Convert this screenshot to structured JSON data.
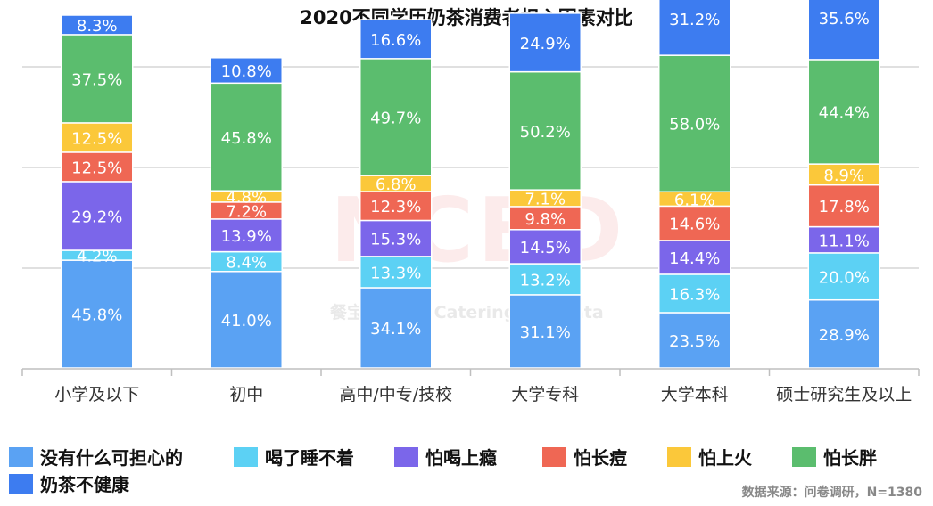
{
  "chart_data": {
    "type": "bar",
    "stacked": true,
    "title": "2020不同学历奶茶消费者担心因素对比",
    "categories": [
      "小学及以下",
      "初中",
      "高中/中专/技校",
      "大学专科",
      "大学本科",
      "硕士研究生及以上"
    ],
    "series": [
      {
        "name": "没有什么可担心的",
        "color": "#5aa2f3",
        "values": [
          45.8,
          41.0,
          34.1,
          31.1,
          23.5,
          28.9
        ]
      },
      {
        "name": "喝了睡不着",
        "color": "#5cd1f4",
        "values": [
          4.2,
          8.4,
          13.3,
          13.2,
          16.3,
          20.0
        ]
      },
      {
        "name": "怕喝上瘾",
        "color": "#7b66ea",
        "values": [
          29.2,
          13.9,
          15.3,
          14.5,
          14.4,
          11.1
        ]
      },
      {
        "name": "怕长痘",
        "color": "#ef6754",
        "values": [
          12.5,
          7.2,
          12.3,
          9.8,
          14.6,
          17.8
        ]
      },
      {
        "name": "怕上火",
        "color": "#fbc83a",
        "values": [
          12.5,
          4.8,
          6.8,
          7.1,
          6.1,
          8.9
        ]
      },
      {
        "name": "怕长胖",
        "color": "#5bbd6e",
        "values": [
          37.5,
          45.8,
          49.7,
          50.2,
          58.0,
          44.4
        ]
      },
      {
        "name": "奶茶不健康",
        "color": "#3d7cf0",
        "values": [
          8.3,
          10.8,
          16.6,
          24.9,
          31.2,
          35.6
        ]
      }
    ],
    "value_suffix": "%",
    "grid": true,
    "legend_position": "bottom"
  },
  "source": "数据来源：问卷调研，N=1380",
  "watermark": {
    "text": "NCBD",
    "sub": "餐宝典  New Catering Big Data"
  }
}
